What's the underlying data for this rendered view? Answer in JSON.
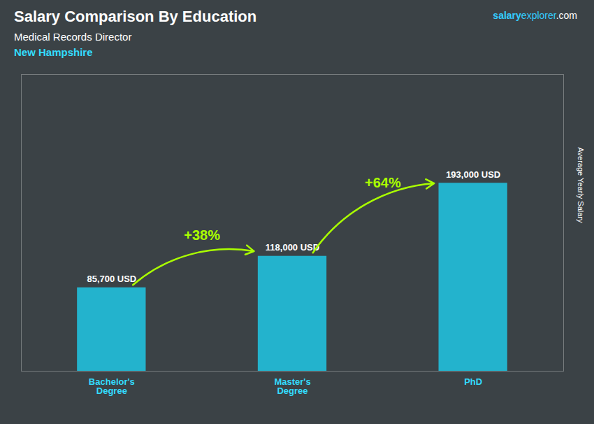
{
  "chart_data": {
    "type": "bar",
    "title": "Salary Comparison By Education",
    "subtitle": [
      "Medical Records Director",
      "New Hampshire"
    ],
    "brand": [
      "salary",
      "explorer",
      ".com"
    ],
    "ylabel": "Average Yearly Salary",
    "categories": [
      "Bachelor's\nDegree",
      "Master's\nDegree",
      "PhD"
    ],
    "values": [
      85700,
      118000,
      193000
    ],
    "value_labels": [
      "85,700 USD",
      "118,000 USD",
      "193,000 USD"
    ],
    "data_labels": true,
    "color": "#1ECFEF",
    "ylim": [
      0,
      304500
    ],
    "tick_labels": "x",
    "grid": false,
    "annotations": [
      {
        "text": "+38%",
        "from": "Bachelor's\nDegree",
        "to": "Master's\nDegree",
        "color": "#AAFF00"
      },
      {
        "text": "+64%",
        "from": "Master's\nDegree",
        "to": "PhD",
        "color": "#AAFF00"
      }
    ]
  }
}
